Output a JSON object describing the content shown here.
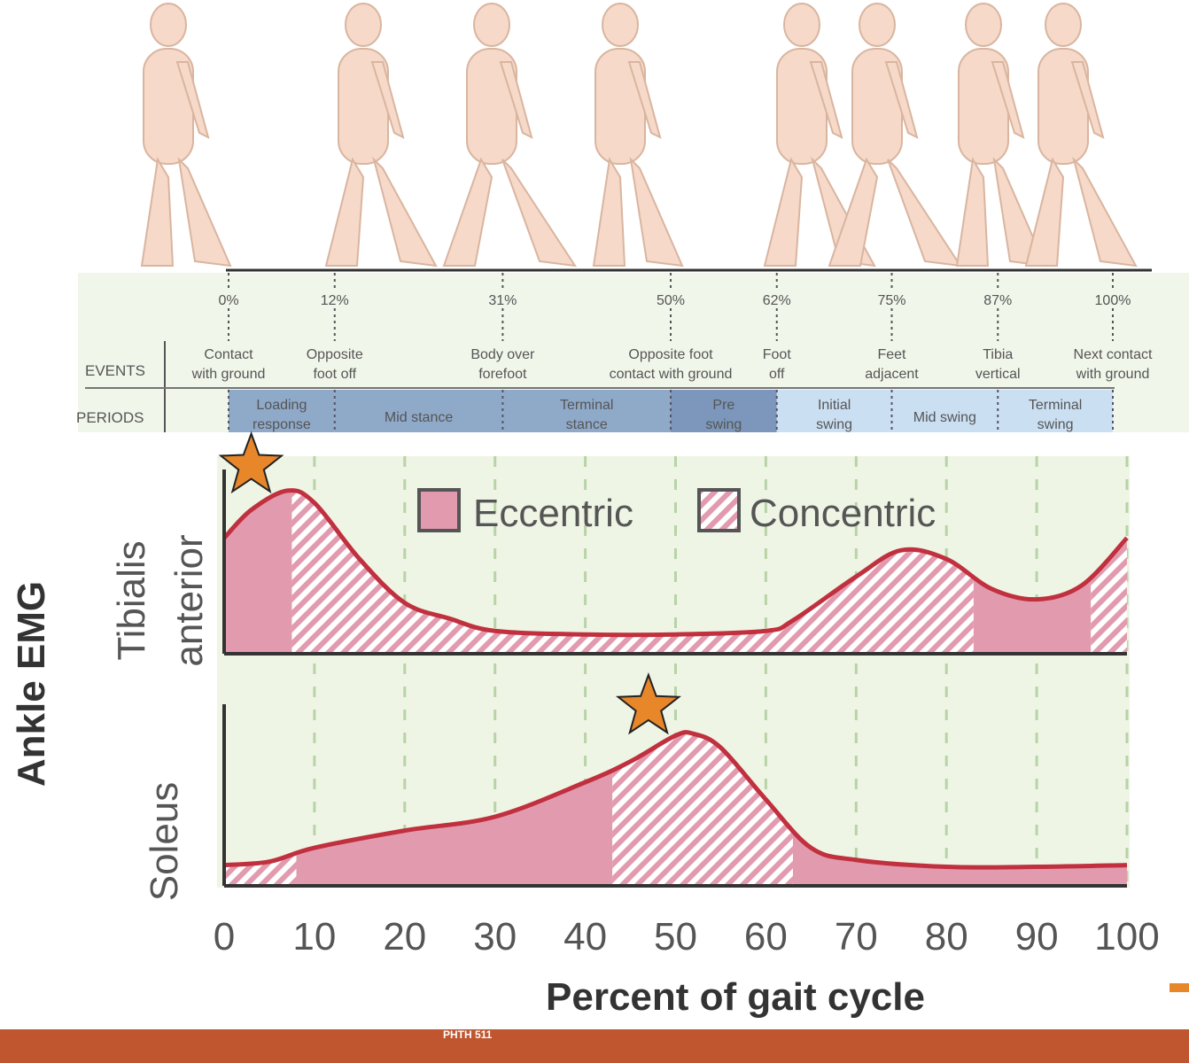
{
  "footer": {
    "text": "PHTH 511",
    "color": "#bf5630"
  },
  "events_table": {
    "events_label": "EVENTS",
    "periods_label": "PERIODS",
    "percents": [
      "0%",
      "12%",
      "31%",
      "50%",
      "62%",
      "75%",
      "87%",
      "100%"
    ],
    "percent_values": [
      0,
      12,
      31,
      50,
      62,
      75,
      87,
      100
    ],
    "events": [
      [
        "Contact",
        "with ground"
      ],
      [
        "Opposite",
        "foot off"
      ],
      [
        "Body over",
        "forefoot"
      ],
      [
        "Opposite foot",
        "contact with ground"
      ],
      [
        "Foot",
        "off"
      ],
      [
        "Feet",
        "adjacent"
      ],
      [
        "Tibia",
        "vertical"
      ],
      [
        "Next contact",
        "with ground"
      ]
    ],
    "periods": [
      {
        "lines": [
          "Loading",
          "response"
        ],
        "from": 0,
        "to": 12,
        "phase": "stance"
      },
      {
        "lines": [
          "Mid stance"
        ],
        "from": 12,
        "to": 31,
        "phase": "stance"
      },
      {
        "lines": [
          "Terminal",
          "stance"
        ],
        "from": 31,
        "to": 50,
        "phase": "stance"
      },
      {
        "lines": [
          "Pre",
          "swing"
        ],
        "from": 50,
        "to": 62,
        "phase": "pre"
      },
      {
        "lines": [
          "Initial",
          "swing"
        ],
        "from": 62,
        "to": 75,
        "phase": "swing"
      },
      {
        "lines": [
          "Mid swing"
        ],
        "from": 75,
        "to": 87,
        "phase": "swing"
      },
      {
        "lines": [
          "Terminal",
          "swing"
        ],
        "from": 87,
        "to": 100,
        "phase": "swing"
      }
    ],
    "colors": {
      "stance": "#8fa9c9",
      "pre": "#7c97bb",
      "swing": "#cadff2"
    }
  },
  "chart_data": {
    "type": "area",
    "ylabel": "Ankle EMG",
    "xlabel": "Percent of gait cycle",
    "xlim": [
      0,
      100
    ],
    "xticks": [
      "0",
      "10",
      "20",
      "30",
      "40",
      "50",
      "60",
      "70",
      "80",
      "90",
      "100"
    ],
    "legend": {
      "position": "top-right",
      "entries": [
        "Eccentric",
        "Concentric"
      ]
    },
    "colors": {
      "line": "#c0303e",
      "fill": "#e29aae",
      "background": "#eef5e5",
      "star": "#e8862a"
    },
    "panels": [
      {
        "label": [
          "Tibialis",
          "anterior"
        ],
        "x": [
          0,
          3,
          7,
          10,
          15,
          20,
          25,
          30,
          40,
          50,
          60,
          63,
          70,
          75,
          80,
          85,
          90,
          95,
          100
        ],
        "y": [
          66,
          82,
          93,
          86,
          54,
          29,
          20,
          13,
          11,
          11,
          13,
          19,
          44,
          59,
          54,
          37,
          31,
          39,
          66
        ],
        "eccentric": [
          [
            0,
            7.5
          ],
          [
            83,
            96
          ]
        ],
        "concentric": [
          [
            7.5,
            83
          ],
          [
            96,
            100
          ]
        ],
        "star_at": 3
      },
      {
        "label": [
          "Soleus"
        ],
        "x": [
          0,
          5,
          10,
          20,
          30,
          40,
          45,
          50,
          52,
          55,
          60,
          65,
          70,
          80,
          90,
          100
        ],
        "y": [
          12,
          14,
          22,
          32,
          40,
          60,
          72,
          87,
          88,
          80,
          50,
          22,
          15,
          11,
          11,
          12
        ],
        "eccentric": [
          [
            8,
            43
          ],
          [
            63,
            100
          ]
        ],
        "concentric": [
          [
            0,
            8
          ],
          [
            43,
            63
          ]
        ],
        "star_at": 47
      }
    ]
  }
}
